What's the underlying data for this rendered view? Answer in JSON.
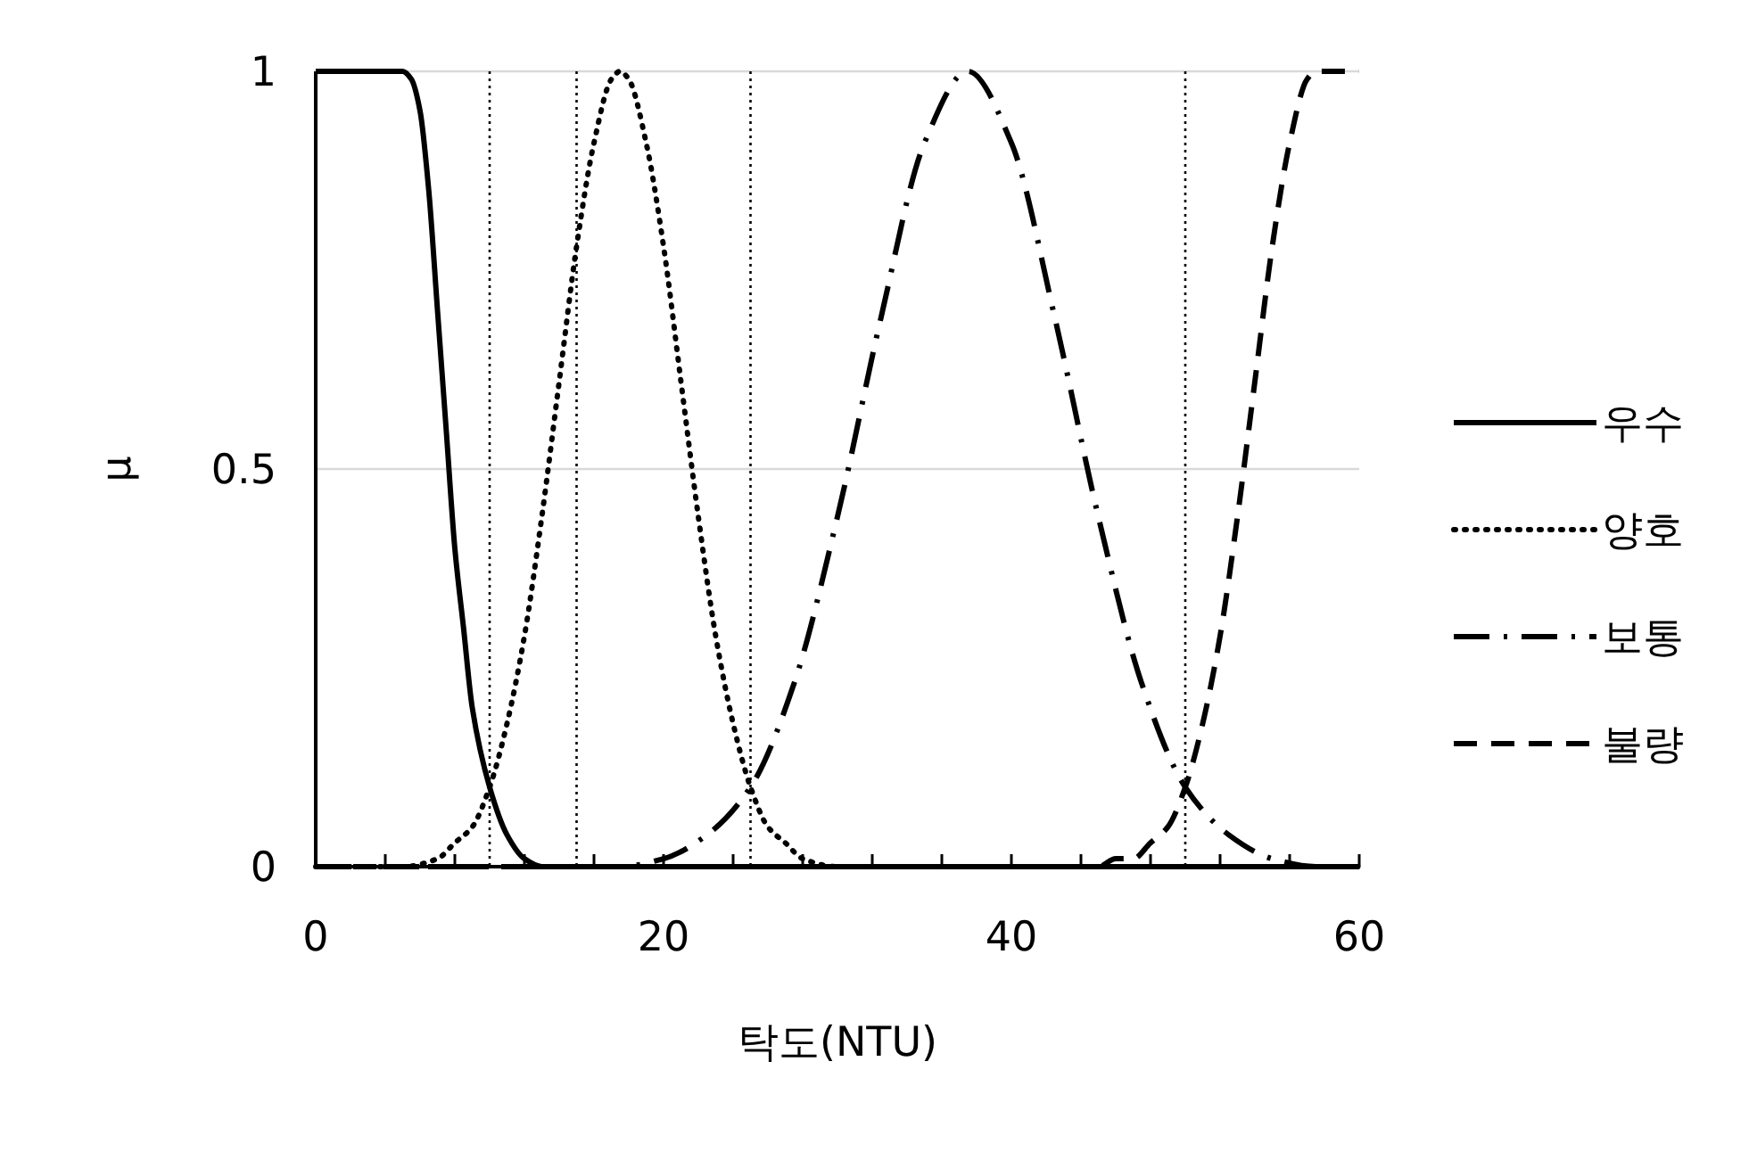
{
  "chart_data": {
    "type": "line",
    "xlabel": "탁도(NTU)",
    "ylabel": "μ",
    "xlim": [
      0,
      60
    ],
    "ylim": [
      0,
      1
    ],
    "xticks": [
      0,
      {
        "value": 4,
        "label": null
      },
      {
        "value": 8,
        "label": null
      },
      {
        "value": 12,
        "label": null
      },
      {
        "value": 16,
        "label": null
      },
      20,
      {
        "value": 24,
        "label": null
      },
      {
        "value": 28,
        "label": null
      },
      {
        "value": 32,
        "label": null
      },
      {
        "value": 36,
        "label": null
      },
      40,
      {
        "value": 44,
        "label": null
      },
      {
        "value": 48,
        "label": null
      },
      {
        "value": 52,
        "label": null
      },
      {
        "value": 56,
        "label": null
      },
      60
    ],
    "yticks": [
      0,
      0.5,
      1
    ],
    "grid": "y",
    "legend": "right",
    "ref_lines": [
      {
        "axis": "x",
        "value": 10,
        "color": "#000000",
        "line_style": "dotted"
      },
      {
        "axis": "x",
        "value": 15,
        "color": "#000000",
        "line_style": "dotted"
      },
      {
        "axis": "x",
        "value": 25,
        "color": "#000000",
        "line_style": "dotted"
      },
      {
        "axis": "x",
        "value": 50,
        "color": "#000000",
        "line_style": "dotted"
      }
    ],
    "series": [
      {
        "name": "우수",
        "color": "#000000",
        "line_style": "solid",
        "x": [
          0,
          5,
          5.5,
          6,
          6.5,
          7,
          7.5,
          8,
          8.5,
          9,
          10,
          11,
          12,
          13,
          14,
          60
        ],
        "values": [
          1,
          1,
          0.99,
          0.95,
          0.85,
          0.7,
          0.55,
          0.4,
          0.3,
          0.2,
          0.1,
          0.04,
          0.01,
          0,
          0,
          0
        ]
      },
      {
        "name": "양호",
        "color": "#000000",
        "line_style": "dotted",
        "x": [
          0,
          5,
          7,
          8,
          9,
          10,
          11,
          12,
          13,
          14,
          15,
          16,
          17,
          17.5,
          18,
          19,
          20,
          21,
          22,
          23,
          24,
          25,
          26,
          27,
          28,
          30,
          60
        ],
        "values": [
          0,
          0,
          0.01,
          0.03,
          0.05,
          0.1,
          0.18,
          0.29,
          0.44,
          0.61,
          0.78,
          0.91,
          0.99,
          1,
          0.99,
          0.91,
          0.78,
          0.61,
          0.44,
          0.29,
          0.18,
          0.1,
          0.05,
          0.03,
          0.01,
          0,
          0
        ]
      },
      {
        "name": "보통",
        "color": "#000000",
        "line_style": "dashdot",
        "x": [
          0,
          17.5,
          20,
          22.5,
          25,
          27.5,
          30,
          32.5,
          35,
          37.5,
          40,
          42.5,
          45,
          47.5,
          50,
          52.5,
          55,
          57.5,
          60
        ],
        "values": [
          0,
          0,
          0.01,
          0.04,
          0.1,
          0.23,
          0.44,
          0.69,
          0.91,
          1,
          0.91,
          0.69,
          0.44,
          0.23,
          0.1,
          0.04,
          0.01,
          0,
          0
        ]
      },
      {
        "name": "불량",
        "color": "#000000",
        "line_style": "dashed",
        "x": [
          0,
          45,
          46,
          47,
          48,
          49,
          50,
          51,
          52,
          53,
          54,
          55,
          56,
          57,
          57.5,
          58,
          60
        ],
        "values": [
          0,
          0,
          0.01,
          0.01,
          0.03,
          0.05,
          0.1,
          0.18,
          0.29,
          0.44,
          0.61,
          0.78,
          0.91,
          0.99,
          1,
          1,
          1
        ]
      }
    ]
  }
}
